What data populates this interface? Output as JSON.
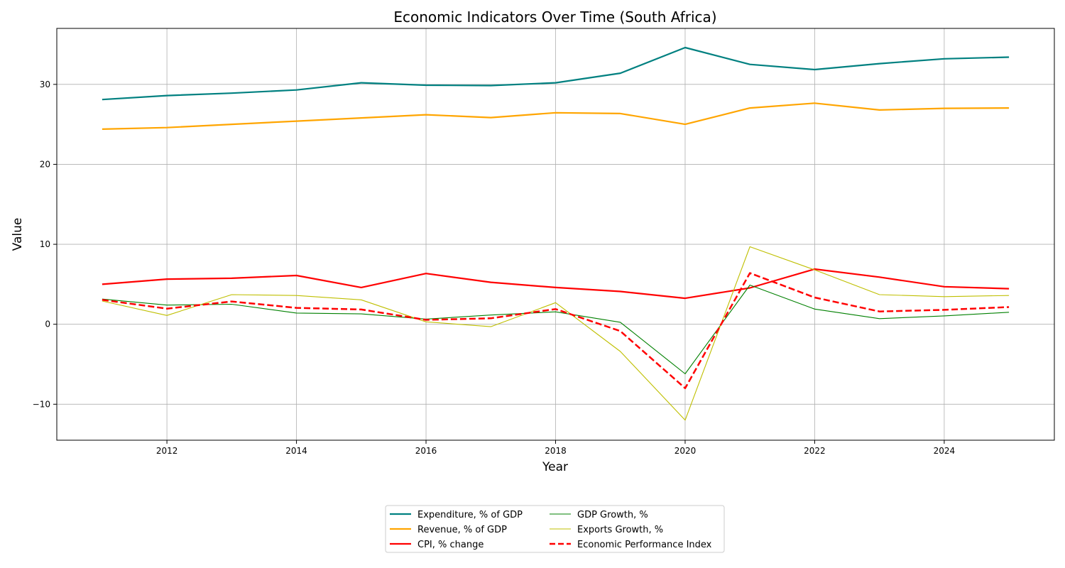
{
  "chart_data": {
    "type": "line",
    "title": "Economic Indicators Over Time (South Africa)",
    "xlabel": "Year",
    "ylabel": "Value",
    "xlim": [
      2010.3,
      2025.7
    ],
    "ylim": [
      -14.5,
      37
    ],
    "xticks": [
      2012,
      2014,
      2016,
      2018,
      2020,
      2022,
      2024
    ],
    "yticks": [
      -10,
      0,
      10,
      20,
      30
    ],
    "grid": true,
    "legend_position": "bottom-center",
    "x": [
      2011,
      2012,
      2013,
      2014,
      2015,
      2016,
      2017,
      2018,
      2019,
      2020,
      2021,
      2022,
      2023,
      2024,
      2025
    ],
    "series": [
      {
        "name": "Expenditure, % of GDP",
        "color": "#008080",
        "width": 2.2,
        "dash": "solid",
        "values": [
          28.1,
          28.6,
          28.9,
          29.3,
          30.2,
          29.9,
          29.85,
          30.2,
          31.4,
          34.6,
          32.5,
          31.85,
          32.6,
          33.2,
          33.4
        ]
      },
      {
        "name": "Revenue, % of GDP",
        "color": "#ffa500",
        "width": 2.2,
        "dash": "solid",
        "values": [
          24.4,
          24.6,
          25.0,
          25.4,
          25.8,
          26.2,
          25.85,
          26.45,
          26.35,
          25.0,
          27.05,
          27.65,
          26.8,
          27.0,
          27.05
        ]
      },
      {
        "name": "CPI, % change",
        "color": "#ff0000",
        "width": 2.2,
        "dash": "solid",
        "values": [
          5.0,
          5.65,
          5.75,
          6.1,
          4.6,
          6.35,
          5.25,
          4.6,
          4.1,
          3.25,
          4.55,
          6.9,
          5.9,
          4.7,
          4.45
        ]
      },
      {
        "name": "GDP Growth, %",
        "color": "#008000",
        "width": 1.1,
        "dash": "solid",
        "values": [
          3.15,
          2.4,
          2.5,
          1.4,
          1.3,
          0.65,
          1.15,
          1.55,
          0.25,
          -6.2,
          4.9,
          1.9,
          0.7,
          1.05,
          1.5
        ]
      },
      {
        "name": "Exports Growth, %",
        "color": "#bfbf00",
        "width": 1.1,
        "dash": "solid",
        "values": [
          2.9,
          1.1,
          3.7,
          3.6,
          3.05,
          0.3,
          -0.3,
          2.7,
          -3.4,
          -12.0,
          9.7,
          6.8,
          3.7,
          3.45,
          3.6
        ]
      },
      {
        "name": "Economic Performance Index",
        "color": "#ff0000",
        "width": 2.5,
        "dash": "dashed",
        "values": [
          3.05,
          1.95,
          2.85,
          2.05,
          1.85,
          0.55,
          0.75,
          1.9,
          -0.85,
          -8.0,
          6.4,
          3.35,
          1.6,
          1.8,
          2.15
        ]
      }
    ]
  }
}
